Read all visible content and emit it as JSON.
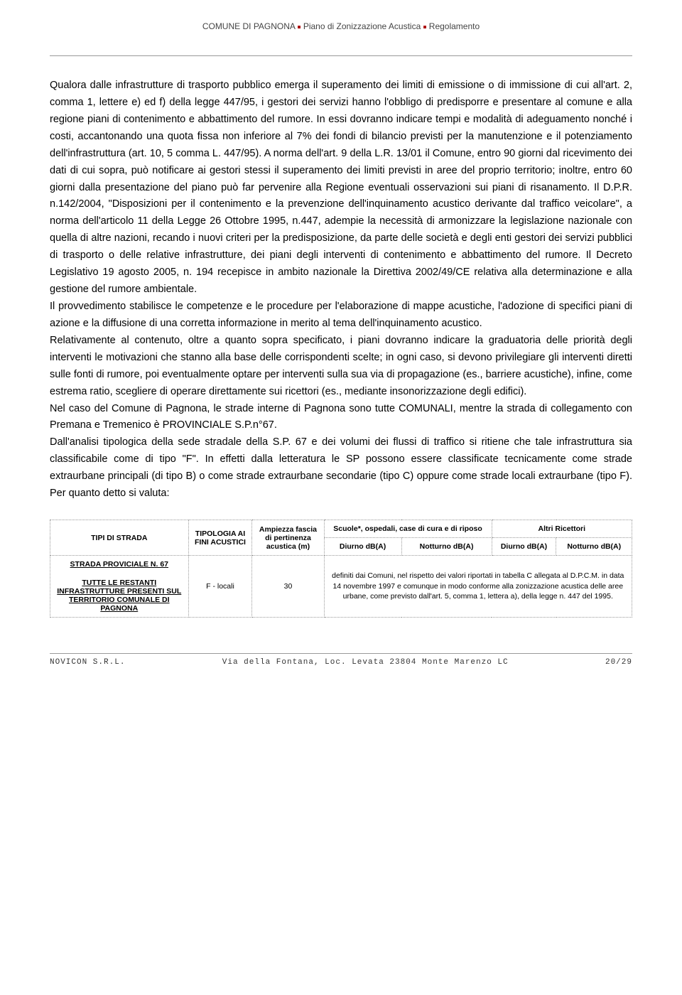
{
  "header": {
    "left": "COMUNE DI PAGNONA",
    "mid": "Piano di Zonizzazione Acustica",
    "right": "Regolamento",
    "bullet": "■"
  },
  "body": "Qualora dalle infrastrutture di trasporto pubblico emerga il superamento dei limiti di emissione o di immissione di cui all'art. 2, comma 1, lettere e) ed f) della legge 447/95, i gestori dei servizi hanno l'obbligo di predisporre e presentare al comune e alla regione piani di contenimento e abbattimento del rumore. In essi dovranno indicare tempi e modalità di adeguamento nonché i costi, accantonando una quota fissa non inferiore al 7% dei fondi di bilancio previsti per la manutenzione e il potenziamento dell'infrastruttura (art. 10, 5 comma L. 447/95). A norma dell'art. 9 della L.R. 13/01 il Comune, entro 90 giorni dal ricevimento dei dati di cui sopra, può notificare ai gestori stessi il superamento dei limiti previsti in aree del proprio territorio; inoltre, entro 60 giorni dalla presentazione del piano può far pervenire alla Regione eventuali osservazioni sui piani di risanamento. Il D.P.R. n.142/2004, \"Disposizioni per il contenimento e la prevenzione dell'inquinamento acustico derivante dal traffico veicolare\", a norma dell'articolo 11 della Legge 26 Ottobre 1995, n.447, adempie la necessità di armonizzare la legislazione nazionale con quella di altre nazioni, recando i nuovi criteri per la predisposizione, da parte delle società e degli enti gestori dei servizi pubblici di trasporto o delle relative infrastrutture, dei piani degli interventi di contenimento e abbattimento del rumore. Il Decreto Legislativo 19 agosto 2005, n. 194 recepisce in ambito nazionale la Direttiva 2002/49/CE relativa alla determinazione e alla gestione del rumore ambientale.\nIl provvedimento stabilisce le competenze e le procedure per l'elaborazione di mappe acustiche, l'adozione di specifici piani di azione e la diffusione di una corretta informazione in merito al tema dell'inquinamento acustico.\nRelativamente al contenuto, oltre a quanto sopra specificato, i piani dovranno indicare la graduatoria delle priorità degli interventi le motivazioni che stanno alla base delle corrispondenti scelte; in ogni caso, si devono privilegiare gli interventi diretti sulle fonti di rumore, poi eventualmente optare per interventi sulla sua via di propagazione (es., barriere acustiche), infine, come estrema ratio, scegliere di operare direttamente sui ricettori (es., mediante insonorizzazione degli edifici).\nNel caso del Comune di Pagnona, le strade interne di Pagnona sono tutte COMUNALI, mentre la strada di collegamento con Premana e Tremenico è PROVINCIALE S.P.n°67.\nDall'analisi tipologica della sede stradale della S.P. 67 e dei volumi dei flussi di traffico si ritiene che tale infrastruttura sia classificabile come di tipo \"F\". In effetti dalla letteratura le SP possono essere classificate tecnicamente come strade extraurbane principali (di tipo B) o come strade extraurbane secondarie (tipo C) oppure come strade locali extraurbane (tipo F). Per quanto detto si valuta:",
  "table": {
    "headers": {
      "c1": "TIPI DI STRADA",
      "c2": "TIPOLOGIA AI FINI ACUSTICI",
      "c3": "Ampiezza fascia di pertinenza acustica (m)",
      "c4_top": "Scuole*, ospedali, case di cura e di riposo",
      "c5_top": "Altri Ricettori",
      "sub_d": "Diurno dB(A)",
      "sub_n": "Notturno dB(A)"
    },
    "row": {
      "c1a": "STRADA PROVICIALE N. 67",
      "c1b": "TUTTE LE RESTANTI INFRASTRUTTURE PRESENTI SUL TERRITORIO COMUNALE DI PAGNONA",
      "c2": "F - locali",
      "c3": "30",
      "note": "definiti dai Comuni, nel rispetto dei valori riportati in tabella C allegata al D.P.C.M. in data 14 novembre 1997 e comunque in modo conforme alla zonizzazione acustica delle aree urbane, come previsto dall'art. 5, comma 1, lettera a), della legge n. 447 del 1995."
    }
  },
  "footer": {
    "left": "NOVICON S.R.L.",
    "mid": "Via della Fontana, Loc. Levata 23804 Monte Marenzo LC",
    "right": "20/29"
  }
}
